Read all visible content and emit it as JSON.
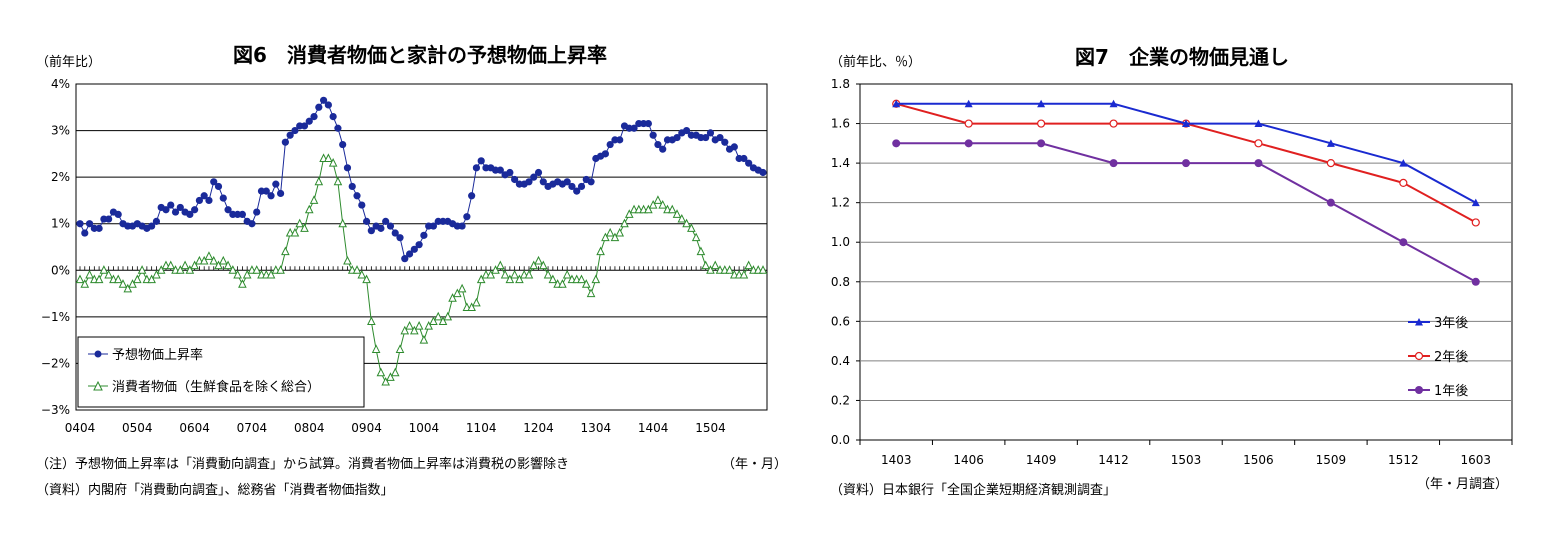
{
  "chart_data": [
    {
      "type": "line",
      "title": "図6　消費者物価と家計の予想物価上昇率",
      "ylabel": "（前年比）",
      "xlabel": "（年・月）",
      "y_ticks": [
        "4%",
        "3%",
        "2%",
        "1%",
        "0%",
        "−1%",
        "−2%",
        "−3%"
      ],
      "ylim": [
        -3,
        4
      ],
      "x_ticks": [
        "0404",
        "0504",
        "0604",
        "0704",
        "0804",
        "0904",
        "1004",
        "1104",
        "1204",
        "1304",
        "1404",
        "1504"
      ],
      "x_start": "0404",
      "grid": true,
      "legend_position": "bottom-left",
      "series": [
        {
          "name": "予想物価上昇率",
          "color": "#1a2a9a",
          "marker": "filled-circle",
          "values": [
            1.0,
            0.8,
            1.0,
            0.9,
            0.9,
            1.1,
            1.1,
            1.25,
            1.2,
            1.0,
            0.95,
            0.95,
            1.0,
            0.95,
            0.9,
            0.95,
            1.05,
            1.35,
            1.3,
            1.4,
            1.25,
            1.35,
            1.25,
            1.2,
            1.3,
            1.5,
            1.6,
            1.5,
            1.9,
            1.8,
            1.55,
            1.3,
            1.2,
            1.2,
            1.2,
            1.05,
            1.0,
            1.25,
            1.7,
            1.7,
            1.6,
            1.85,
            1.65,
            2.75,
            2.9,
            3.0,
            3.1,
            3.1,
            3.2,
            3.3,
            3.5,
            3.65,
            3.55,
            3.3,
            3.05,
            2.7,
            2.2,
            1.8,
            1.6,
            1.4,
            1.05,
            0.85,
            0.95,
            0.9,
            1.05,
            0.95,
            0.8,
            0.7,
            0.25,
            0.35,
            0.45,
            0.55,
            0.75,
            0.95,
            0.95,
            1.05,
            1.05,
            1.05,
            1.0,
            0.95,
            0.95,
            1.15,
            1.6,
            2.2,
            2.35,
            2.2,
            2.2,
            2.15,
            2.15,
            2.05,
            2.1,
            1.95,
            1.85,
            1.85,
            1.9,
            2.0,
            2.1,
            1.9,
            1.8,
            1.85,
            1.9,
            1.85,
            1.9,
            1.8,
            1.7,
            1.8,
            1.95,
            1.9,
            2.4,
            2.45,
            2.5,
            2.7,
            2.8,
            2.8,
            3.1,
            3.05,
            3.05,
            3.15,
            3.15,
            3.15,
            2.9,
            2.7,
            2.6,
            2.8,
            2.8,
            2.85,
            2.95,
            3.0,
            2.9,
            2.9,
            2.85,
            2.85,
            2.95,
            2.8,
            2.85,
            2.75,
            2.6,
            2.65,
            2.4,
            2.4,
            2.3,
            2.2,
            2.15,
            2.1
          ]
        },
        {
          "name": "消費者物価（生鮮食品を除く総合）",
          "color": "#2e8b2e",
          "marker": "open-triangle",
          "values": [
            -0.2,
            -0.3,
            -0.1,
            -0.2,
            -0.2,
            0.0,
            -0.1,
            -0.2,
            -0.2,
            -0.3,
            -0.4,
            -0.3,
            -0.2,
            0.0,
            -0.2,
            -0.2,
            -0.1,
            0.0,
            0.1,
            0.1,
            0.0,
            0.0,
            0.1,
            0.0,
            0.1,
            0.2,
            0.2,
            0.3,
            0.2,
            0.1,
            0.2,
            0.1,
            0.0,
            -0.1,
            -0.3,
            -0.1,
            0.0,
            0.0,
            -0.1,
            -0.1,
            -0.1,
            0.0,
            0.0,
            0.4,
            0.8,
            0.8,
            1.0,
            0.9,
            1.3,
            1.5,
            1.9,
            2.4,
            2.4,
            2.3,
            1.9,
            1.0,
            0.2,
            0.0,
            0.0,
            -0.1,
            -0.2,
            -1.1,
            -1.7,
            -2.2,
            -2.4,
            -2.3,
            -2.2,
            -1.7,
            -1.3,
            -1.2,
            -1.3,
            -1.2,
            -1.5,
            -1.2,
            -1.1,
            -1.0,
            -1.1,
            -1.0,
            -0.6,
            -0.5,
            -0.4,
            -0.8,
            -0.8,
            -0.7,
            -0.2,
            -0.1,
            -0.1,
            0.0,
            0.1,
            -0.1,
            -0.2,
            -0.1,
            -0.2,
            -0.1,
            -0.1,
            0.1,
            0.2,
            0.1,
            -0.1,
            -0.2,
            -0.3,
            -0.3,
            -0.1,
            -0.2,
            -0.2,
            -0.2,
            -0.3,
            -0.5,
            -0.2,
            0.4,
            0.7,
            0.8,
            0.7,
            0.8,
            1.0,
            1.2,
            1.3,
            1.3,
            1.3,
            1.3,
            1.4,
            1.5,
            1.4,
            1.3,
            1.3,
            1.2,
            1.1,
            1.0,
            0.9,
            0.7,
            0.4,
            0.1,
            0.0,
            0.1,
            0.0,
            0.0,
            0.0,
            -0.1,
            -0.1,
            -0.1,
            0.1,
            0.0,
            0.0,
            0.0
          ]
        }
      ]
    },
    {
      "type": "line",
      "title": "図7　企業の物価見通し",
      "ylabel": "（前年比、％）",
      "xlabel": "（年・月調査）",
      "categories": [
        "1403",
        "1406",
        "1409",
        "1412",
        "1503",
        "1506",
        "1509",
        "1512",
        "1603"
      ],
      "ylim": [
        0,
        1.8
      ],
      "y_ticks": [
        "1.8",
        "1.6",
        "1.4",
        "1.2",
        "1.0",
        "0.8",
        "0.6",
        "0.4",
        "0.2",
        "0.0"
      ],
      "grid": true,
      "legend_position": "right",
      "series": [
        {
          "name": "3年後",
          "color": "#1a2ad0",
          "marker": "filled-triangle",
          "values": [
            1.7,
            1.7,
            1.7,
            1.7,
            1.6,
            1.6,
            1.5,
            1.4,
            1.2
          ]
        },
        {
          "name": "2年後",
          "color": "#e02020",
          "marker": "open-circle",
          "values": [
            1.7,
            1.6,
            1.6,
            1.6,
            1.6,
            1.5,
            1.4,
            1.3,
            1.1
          ]
        },
        {
          "name": "1年後",
          "color": "#7030a0",
          "marker": "filled-circle",
          "values": [
            1.5,
            1.5,
            1.5,
            1.4,
            1.4,
            1.4,
            1.2,
            1.0,
            0.8
          ]
        }
      ]
    }
  ],
  "notes": {
    "left_note": "（注）予想物価上昇率は「消費動向調査」から試算。消費者物価上昇率は消費税の影響除き",
    "left_source": "（資料）内閣府「消費動向調査」、総務省「消費者物価指数」",
    "right_source": "（資料）日本銀行「全国企業短期経済観測調査」"
  }
}
